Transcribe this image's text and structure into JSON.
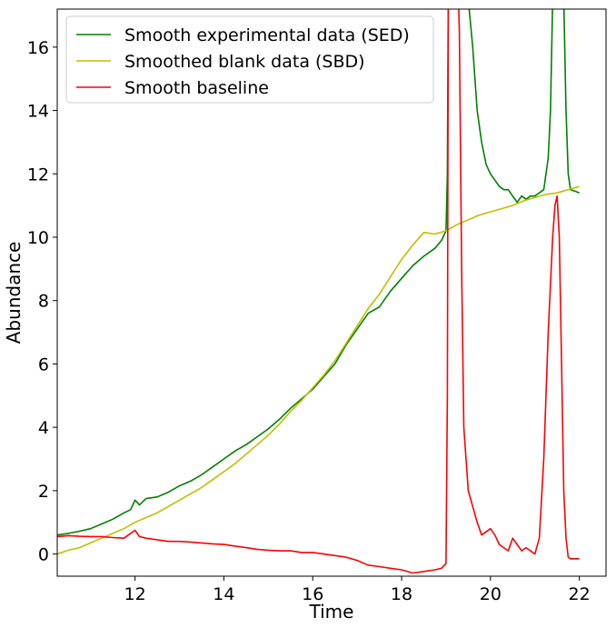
{
  "chart_data": {
    "type": "line",
    "title": "",
    "xlabel": "Time",
    "ylabel": "Abundance",
    "xlim": [
      10.25,
      22.6
    ],
    "ylim": [
      -0.7,
      17.2
    ],
    "xticks": [
      12,
      14,
      16,
      18,
      20,
      22
    ],
    "yticks": [
      0,
      2,
      4,
      6,
      8,
      10,
      12,
      14,
      16
    ],
    "grid": false,
    "legend_position": "top-left",
    "series": [
      {
        "name": "Smooth experimental data (SED)",
        "color": "#008000",
        "x": [
          10.25,
          10.5,
          10.75,
          11.0,
          11.25,
          11.5,
          11.75,
          11.9,
          12.0,
          12.1,
          12.25,
          12.5,
          12.75,
          13.0,
          13.25,
          13.5,
          13.75,
          14.0,
          14.25,
          14.5,
          14.75,
          15.0,
          15.25,
          15.5,
          15.75,
          16.0,
          16.25,
          16.5,
          16.75,
          17.0,
          17.25,
          17.5,
          17.75,
          18.0,
          18.25,
          18.5,
          18.75,
          18.9,
          19.0,
          19.03,
          19.05,
          19.08,
          19.1,
          19.15,
          19.2,
          19.25,
          19.3,
          19.35,
          19.4,
          19.5,
          19.6,
          19.7,
          19.8,
          19.9,
          20.0,
          20.1,
          20.2,
          20.3,
          20.4,
          20.5,
          20.6,
          20.7,
          20.8,
          20.9,
          21.0,
          21.1,
          21.2,
          21.3,
          21.35,
          21.4,
          21.45,
          21.5,
          21.55,
          21.6,
          21.65,
          21.7,
          21.75,
          21.8,
          21.9,
          22.0
        ],
        "y": [
          0.6,
          0.65,
          0.72,
          0.8,
          0.95,
          1.1,
          1.3,
          1.4,
          1.7,
          1.55,
          1.75,
          1.8,
          1.95,
          2.15,
          2.3,
          2.5,
          2.75,
          3.0,
          3.25,
          3.45,
          3.7,
          3.95,
          4.25,
          4.6,
          4.9,
          5.2,
          5.6,
          6.0,
          6.6,
          7.1,
          7.6,
          7.8,
          8.3,
          8.7,
          9.1,
          9.4,
          9.65,
          9.9,
          10.2,
          12.0,
          17.5,
          17.5,
          17.5,
          17.5,
          17.5,
          17.5,
          17.5,
          17.5,
          17.5,
          17.5,
          16.0,
          14.0,
          13.0,
          12.3,
          12.0,
          11.8,
          11.6,
          11.5,
          11.5,
          11.3,
          11.1,
          11.3,
          11.2,
          11.3,
          11.3,
          11.4,
          11.5,
          12.5,
          14.0,
          17.5,
          17.5,
          17.5,
          17.5,
          17.5,
          17.5,
          14.0,
          12.0,
          11.5,
          11.45,
          11.4
        ]
      },
      {
        "name": "Smoothed blank data (SBD)",
        "color": "#bfbf00",
        "x": [
          10.25,
          10.5,
          10.75,
          11.0,
          11.25,
          11.5,
          11.75,
          12.0,
          12.25,
          12.5,
          12.75,
          13.0,
          13.25,
          13.5,
          13.75,
          14.0,
          14.25,
          14.5,
          14.75,
          15.0,
          15.25,
          15.5,
          15.75,
          16.0,
          16.25,
          16.5,
          16.75,
          17.0,
          17.25,
          17.5,
          17.75,
          18.0,
          18.25,
          18.5,
          18.75,
          19.0,
          19.25,
          19.5,
          19.75,
          20.0,
          20.25,
          20.5,
          20.75,
          21.0,
          21.25,
          21.5,
          21.75,
          22.0
        ],
        "y": [
          0.0,
          0.12,
          0.2,
          0.35,
          0.5,
          0.65,
          0.8,
          1.0,
          1.15,
          1.3,
          1.5,
          1.7,
          1.9,
          2.1,
          2.35,
          2.6,
          2.85,
          3.15,
          3.45,
          3.75,
          4.1,
          4.5,
          4.85,
          5.25,
          5.65,
          6.1,
          6.65,
          7.2,
          7.75,
          8.2,
          8.75,
          9.3,
          9.75,
          10.15,
          10.1,
          10.2,
          10.4,
          10.55,
          10.7,
          10.8,
          10.9,
          11.0,
          11.15,
          11.25,
          11.35,
          11.4,
          11.5,
          11.6
        ]
      },
      {
        "name": "Smooth baseline",
        "color": "#ff0000",
        "x": [
          10.25,
          10.5,
          10.75,
          11.0,
          11.25,
          11.5,
          11.75,
          12.0,
          12.1,
          12.25,
          12.5,
          12.75,
          13.0,
          13.25,
          13.5,
          13.75,
          14.0,
          14.25,
          14.5,
          14.75,
          15.0,
          15.25,
          15.5,
          15.75,
          16.0,
          16.25,
          16.5,
          16.75,
          17.0,
          17.25,
          17.5,
          17.75,
          18.0,
          18.25,
          18.5,
          18.75,
          18.9,
          19.0,
          19.03,
          19.05,
          19.08,
          19.1,
          19.15,
          19.2,
          19.25,
          19.28,
          19.3,
          19.35,
          19.4,
          19.5,
          19.6,
          19.7,
          19.8,
          19.9,
          20.0,
          20.1,
          20.2,
          20.3,
          20.4,
          20.5,
          20.6,
          20.7,
          20.8,
          20.9,
          21.0,
          21.1,
          21.2,
          21.3,
          21.4,
          21.45,
          21.5,
          21.55,
          21.6,
          21.65,
          21.7,
          21.75,
          21.8,
          21.9,
          22.0
        ],
        "y": [
          0.55,
          0.58,
          0.56,
          0.55,
          0.55,
          0.52,
          0.5,
          0.75,
          0.55,
          0.5,
          0.45,
          0.4,
          0.4,
          0.38,
          0.35,
          0.32,
          0.3,
          0.25,
          0.2,
          0.15,
          0.12,
          0.1,
          0.1,
          0.05,
          0.05,
          0.0,
          -0.05,
          -0.1,
          -0.2,
          -0.35,
          -0.4,
          -0.45,
          -0.5,
          -0.6,
          -0.55,
          -0.5,
          -0.45,
          -0.3,
          5.0,
          17.5,
          17.5,
          17.5,
          17.5,
          17.5,
          17.5,
          17.5,
          16.5,
          9.0,
          4.0,
          2.0,
          1.5,
          1.0,
          0.6,
          0.7,
          0.8,
          0.6,
          0.3,
          0.2,
          0.1,
          0.5,
          0.3,
          0.1,
          0.2,
          0.1,
          0.0,
          0.5,
          3.0,
          7.0,
          10.0,
          11.0,
          11.3,
          10.0,
          6.0,
          2.0,
          0.5,
          -0.1,
          -0.15,
          -0.15,
          -0.15
        ]
      }
    ]
  }
}
